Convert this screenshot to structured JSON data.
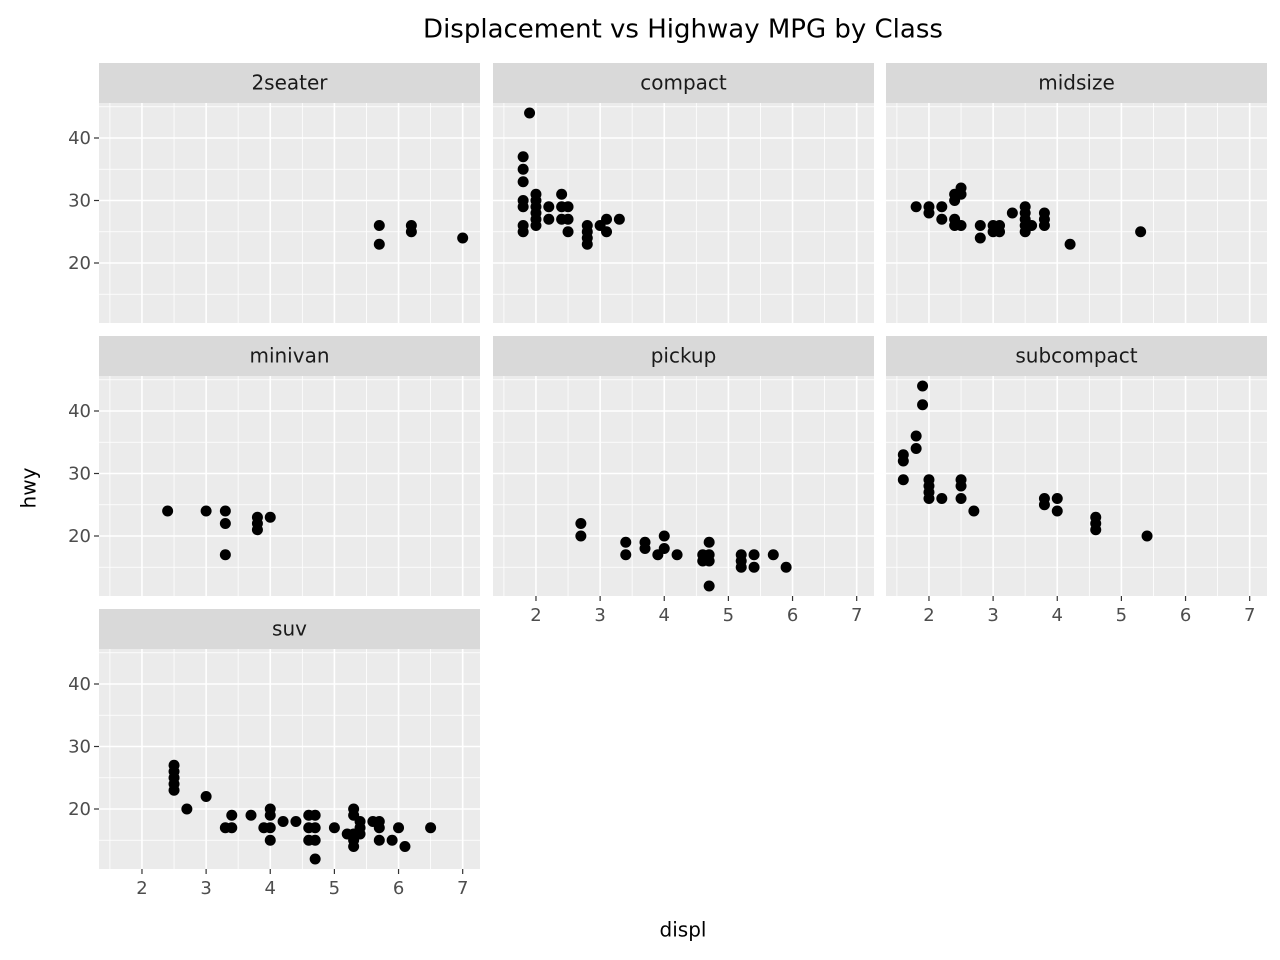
{
  "chart_data": {
    "type": "scatter",
    "facet": true,
    "title": "Displacement vs Highway MPG by Class",
    "x_label": "displ",
    "y_label": "hwy",
    "color": "#000000",
    "xlim": [
      1.33,
      7.27
    ],
    "ylim": [
      10.4,
      45.6
    ],
    "xticks": [
      2,
      3,
      4,
      5,
      6,
      7
    ],
    "yticks": [
      20,
      30,
      40
    ],
    "x_minor_ticks": [
      1.5,
      2.5,
      3.5,
      4.5,
      5.5,
      6.5
    ],
    "y_minor_ticks": [
      15,
      25,
      35,
      45
    ],
    "grid": true,
    "columns": 3,
    "series": [
      {
        "name": "2seater",
        "x": [
          5.7,
          5.7,
          6.2,
          6.2,
          7.0
        ],
        "values": [
          26,
          23,
          26,
          25,
          24
        ]
      },
      {
        "name": "compact",
        "x": [
          1.8,
          1.8,
          1.8,
          1.8,
          1.8,
          1.8,
          1.8,
          1.9,
          2.0,
          2.0,
          2.0,
          2.0,
          2.0,
          2.0,
          2.2,
          2.2,
          2.4,
          2.4,
          2.4,
          2.5,
          2.5,
          2.5,
          2.8,
          2.8,
          2.8,
          2.8,
          3.0,
          3.1,
          3.1,
          3.3
        ],
        "values": [
          37,
          35,
          33,
          30,
          29,
          26,
          25,
          44,
          31,
          30,
          29,
          28,
          27,
          26,
          29,
          27,
          31,
          29,
          27,
          29,
          27,
          25,
          26,
          25,
          24,
          23,
          26,
          27,
          25,
          27
        ]
      },
      {
        "name": "midsize",
        "x": [
          1.8,
          2.0,
          2.0,
          2.2,
          2.2,
          2.4,
          2.4,
          2.4,
          2.4,
          2.5,
          2.5,
          2.5,
          2.8,
          2.8,
          3.0,
          3.0,
          3.1,
          3.1,
          3.3,
          3.5,
          3.5,
          3.5,
          3.5,
          3.5,
          3.6,
          3.8,
          3.8,
          3.8,
          4.2,
          5.3
        ],
        "values": [
          29,
          29,
          28,
          29,
          27,
          31,
          30,
          27,
          26,
          32,
          31,
          26,
          24,
          26,
          26,
          25,
          26,
          25,
          28,
          29,
          28,
          27,
          26,
          25,
          26,
          28,
          27,
          26,
          23,
          25
        ]
      },
      {
        "name": "minivan",
        "x": [
          2.4,
          3.0,
          3.3,
          3.3,
          3.3,
          3.8,
          3.8,
          3.8,
          4.0
        ],
        "values": [
          24,
          24,
          24,
          22,
          17,
          23,
          22,
          21,
          23
        ]
      },
      {
        "name": "pickup",
        "x": [
          2.7,
          2.7,
          3.4,
          3.4,
          3.7,
          3.7,
          3.9,
          4.0,
          4.0,
          4.2,
          4.6,
          4.6,
          4.7,
          4.7,
          4.7,
          4.7,
          5.2,
          5.2,
          5.2,
          5.4,
          5.4,
          5.7,
          5.9
        ],
        "values": [
          22,
          20,
          19,
          17,
          19,
          18,
          17,
          20,
          18,
          17,
          17,
          16,
          19,
          17,
          16,
          12,
          17,
          16,
          15,
          17,
          15,
          17,
          15
        ]
      },
      {
        "name": "subcompact",
        "x": [
          1.6,
          1.6,
          1.6,
          1.8,
          1.8,
          1.9,
          1.9,
          2.0,
          2.0,
          2.0,
          2.0,
          2.2,
          2.5,
          2.5,
          2.5,
          2.7,
          3.8,
          3.8,
          4.0,
          4.0,
          4.6,
          4.6,
          4.6,
          5.4
        ],
        "values": [
          33,
          32,
          29,
          36,
          34,
          44,
          41,
          29,
          28,
          27,
          26,
          26,
          29,
          28,
          26,
          24,
          26,
          25,
          26,
          24,
          23,
          22,
          21,
          20
        ]
      },
      {
        "name": "suv",
        "x": [
          2.5,
          2.5,
          2.5,
          2.5,
          2.5,
          2.7,
          3.0,
          3.3,
          3.4,
          3.4,
          3.7,
          3.9,
          4.0,
          4.0,
          4.0,
          4.0,
          4.2,
          4.4,
          4.6,
          4.6,
          4.6,
          4.7,
          4.7,
          4.7,
          4.7,
          5.0,
          5.2,
          5.3,
          5.3,
          5.3,
          5.3,
          5.3,
          5.4,
          5.4,
          5.4,
          5.6,
          5.7,
          5.7,
          5.7,
          5.9,
          6.0,
          6.1,
          6.5
        ],
        "values": [
          27,
          26,
          25,
          24,
          23,
          20,
          22,
          17,
          19,
          17,
          19,
          17,
          20,
          19,
          17,
          15,
          18,
          18,
          19,
          17,
          15,
          19,
          17,
          15,
          12,
          17,
          16,
          20,
          19,
          16,
          15,
          14,
          18,
          17,
          16,
          18,
          18,
          17,
          15,
          15,
          17,
          14,
          17
        ]
      }
    ]
  }
}
